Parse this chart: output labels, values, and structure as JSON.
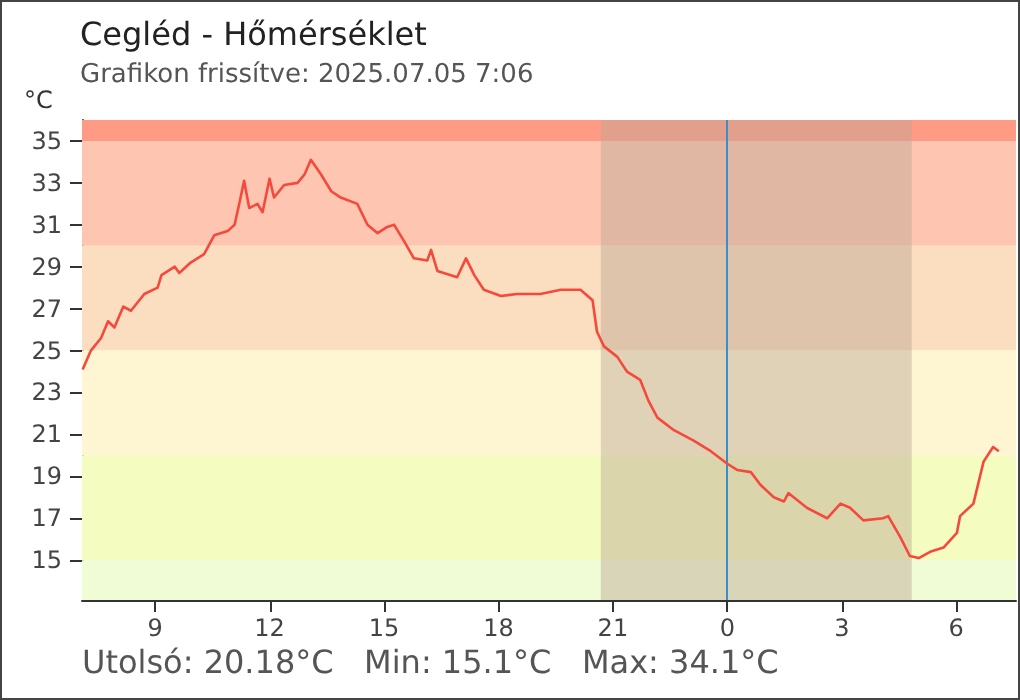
{
  "chart_data": {
    "type": "line",
    "title": "Cegléd - Hőmérséklet",
    "subtitle": "Grafikon frissítve: 2025.07.05 7:06",
    "ylabel": "°C",
    "annotations": [
      "Utolsó: 20.18°C",
      "Min: 15.1°C",
      "Max: 34.1°C"
    ],
    "x": [
      "2025-07-04T07:06",
      "2025-07-04T07:19",
      "2025-07-04T07:35",
      "2025-07-04T07:46",
      "2025-07-04T07:56",
      "2025-07-04T08:10",
      "2025-07-04T08:22",
      "2025-07-04T08:43",
      "2025-07-04T09:04",
      "2025-07-04T09:10",
      "2025-07-04T09:31",
      "2025-07-04T09:38",
      "2025-07-04T09:56",
      "2025-07-04T10:17",
      "2025-07-04T10:33",
      "2025-07-04T10:54",
      "2025-07-04T11:05",
      "2025-07-04T11:13",
      "2025-07-04T11:20",
      "2025-07-04T11:28",
      "2025-07-04T11:41",
      "2025-07-04T11:49",
      "2025-07-04T12:00",
      "2025-07-04T12:07",
      "2025-07-04T12:23",
      "2025-07-04T12:44",
      "2025-07-04T12:55",
      "2025-07-04T13:05",
      "2025-07-04T13:21",
      "2025-07-04T13:37",
      "2025-07-04T13:52",
      "2025-07-04T14:18",
      "2025-07-04T14:34",
      "2025-07-04T14:50",
      "2025-07-04T15:05",
      "2025-07-04T15:16",
      "2025-07-04T15:32",
      "2025-07-04T15:47",
      "2025-07-04T16:08",
      "2025-07-04T16:14",
      "2025-07-04T16:24",
      "2025-07-04T16:55",
      "2025-07-04T17:09",
      "2025-07-04T17:22",
      "2025-07-04T17:37",
      "2025-07-04T18:04",
      "2025-07-04T18:29",
      "2025-07-04T19:06",
      "2025-07-04T19:38",
      "2025-07-04T20:09",
      "2025-07-04T20:28",
      "2025-07-04T20:35",
      "2025-07-04T20:46",
      "2025-07-04T21:07",
      "2025-07-04T21:22",
      "2025-07-04T21:43",
      "2025-07-04T21:56",
      "2025-07-04T22:10",
      "2025-07-04T22:36",
      "2025-07-04T23:07",
      "2025-07-04T23:34",
      "2025-07-05T00:00",
      "2025-07-05T00:16",
      "2025-07-05T00:37",
      "2025-07-05T00:52",
      "2025-07-05T01:13",
      "2025-07-05T01:29",
      "2025-07-05T01:36",
      "2025-07-05T02:05",
      "2025-07-05T02:37",
      "2025-07-05T02:58",
      "2025-07-05T03:13",
      "2025-07-05T03:34",
      "2025-07-05T04:05",
      "2025-07-05T04:13",
      "2025-07-05T04:32",
      "2025-07-05T04:47",
      "2025-07-05T05:01",
      "2025-07-05T05:19",
      "2025-07-05T05:40",
      "2025-07-05T06:01",
      "2025-07-05T06:06",
      "2025-07-05T06:27",
      "2025-07-05T06:43",
      "2025-07-05T06:58",
      "2025-07-05T07:07"
    ],
    "series": [
      {
        "color": "#f44a3e",
        "values": [
          24.1,
          25.0,
          25.6,
          26.4,
          26.1,
          27.1,
          26.9,
          27.7,
          28.0,
          28.6,
          29.0,
          28.7,
          29.2,
          29.6,
          30.5,
          30.7,
          31.0,
          32.1,
          33.1,
          31.8,
          32.0,
          31.6,
          33.2,
          32.3,
          32.9,
          33.0,
          33.4,
          34.1,
          33.4,
          32.6,
          32.3,
          32.0,
          31.0,
          30.6,
          30.9,
          31.0,
          30.2,
          29.4,
          29.3,
          29.8,
          28.8,
          28.5,
          29.4,
          28.6,
          27.9,
          27.6,
          27.7,
          27.7,
          27.9,
          27.9,
          27.4,
          25.9,
          25.2,
          24.7,
          24.0,
          23.6,
          22.6,
          21.8,
          21.2,
          20.7,
          20.2,
          19.6,
          19.3,
          19.2,
          18.6,
          18.0,
          17.8,
          18.2,
          17.5,
          17.0,
          17.7,
          17.5,
          16.9,
          17.0,
          17.1,
          16.1,
          15.2,
          15.1,
          15.4,
          15.6,
          16.3,
          17.1,
          17.7,
          19.7,
          20.4,
          20.2
        ]
      }
    ],
    "xlim": [
      "2025-07-04T07:05",
      "2025-07-05T07:34"
    ],
    "xticks": [
      {
        "value": "2025-07-04T09:00",
        "label": "9"
      },
      {
        "value": "2025-07-04T12:00",
        "label": "12"
      },
      {
        "value": "2025-07-04T15:00",
        "label": "15"
      },
      {
        "value": "2025-07-04T18:00",
        "label": "18"
      },
      {
        "value": "2025-07-04T21:00",
        "label": "21"
      },
      {
        "value": "2025-07-05T00:00",
        "label": "0"
      },
      {
        "value": "2025-07-05T03:00",
        "label": "3"
      },
      {
        "value": "2025-07-05T06:00",
        "label": "6"
      }
    ],
    "ylim": [
      13.1,
      36
    ],
    "yticks": [
      15,
      17,
      19,
      21,
      23,
      25,
      27,
      29,
      31,
      33,
      35
    ],
    "bands": [
      {
        "axis": "y",
        "from": 35,
        "to": 36,
        "color": "#ff9a85"
      },
      {
        "axis": "y",
        "from": 30,
        "to": 35,
        "color": "#fec5b0"
      },
      {
        "axis": "y",
        "from": 25,
        "to": 30,
        "color": "#fbddc0"
      },
      {
        "axis": "y",
        "from": 20,
        "to": 25,
        "color": "#fef6d2"
      },
      {
        "axis": "y",
        "from": 15,
        "to": 20,
        "color": "#f4fcbf"
      },
      {
        "axis": "y",
        "from": 13.1,
        "to": 15,
        "color": "#effcd6"
      },
      {
        "axis": "x",
        "from": "2025-07-04T20:41",
        "to": "2025-07-05T04:50",
        "color": "#bca795"
      }
    ],
    "ref_lines": [
      {
        "axis": "x",
        "value": "2025-07-05T00:00",
        "color": "#3c8dcc"
      }
    ],
    "grid": false,
    "marker": "none",
    "line_style": "solid"
  }
}
